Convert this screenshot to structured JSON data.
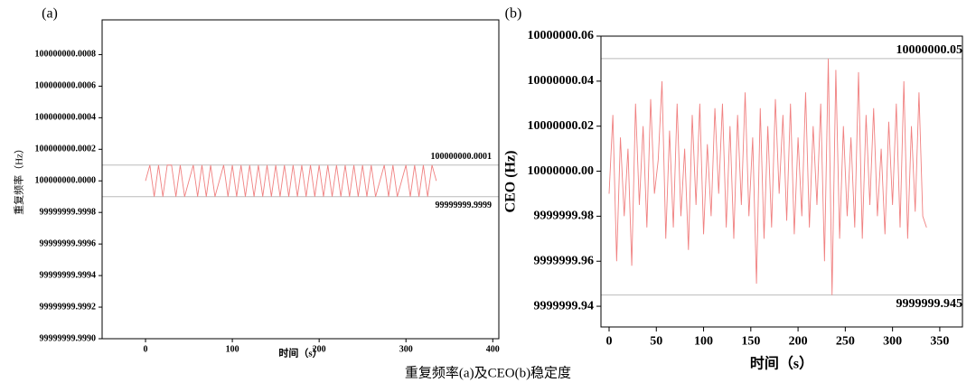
{
  "chart_data": [
    {
      "type": "line",
      "panel_label": "(a)",
      "x_label": "时间（s）",
      "y_label": "重复频率（Hz）",
      "xlim": [
        -50,
        407
      ],
      "xticks": [
        0,
        100,
        200,
        300,
        400
      ],
      "ylim": [
        99999999.999,
        100000000.00102
      ],
      "yticks": [
        {
          "value": 99999999.999,
          "label": "99999999.9990"
        },
        {
          "value": 99999999.9992,
          "label": "99999999.9992"
        },
        {
          "value": 99999999.9994,
          "label": "99999999.9994"
        },
        {
          "value": 99999999.9996,
          "label": "99999999.9996"
        },
        {
          "value": 99999999.9998,
          "label": "99999999.9998"
        },
        {
          "value": 100000000,
          "label": "100000000.0000"
        },
        {
          "value": 100000000.0002,
          "label": "100000000.0002"
        },
        {
          "value": 100000000.0004,
          "label": "100000000.0004"
        },
        {
          "value": 100000000.0006,
          "label": "100000000.0006"
        },
        {
          "value": 100000000.0008,
          "label": "100000000.0008"
        }
      ],
      "hlines": [
        {
          "value": 100000000.0001,
          "label": "100000000.0001"
        },
        {
          "value": 99999999.9999,
          "label": "99999999.9999"
        }
      ],
      "series": [
        {
          "color": "#f08080",
          "x": [
            0,
            5,
            10,
            15,
            20,
            25,
            30,
            35,
            40,
            45,
            50,
            55,
            60,
            65,
            70,
            75,
            80,
            85,
            90,
            95,
            100,
            105,
            110,
            115,
            120,
            125,
            130,
            135,
            140,
            145,
            150,
            155,
            160,
            165,
            170,
            175,
            180,
            185,
            190,
            195,
            200,
            205,
            210,
            215,
            220,
            225,
            230,
            235,
            240,
            245,
            250,
            255,
            260,
            265,
            270,
            275,
            280,
            285,
            290,
            295,
            300,
            305,
            310,
            315,
            320,
            325,
            330,
            335
          ],
          "values": [
            100000000,
            100000000.0001,
            99999999.9999,
            100000000.0001,
            99999999.9999,
            100000000.0001,
            100000000.0001,
            99999999.9999,
            100000000.0001,
            99999999.9999,
            100000000,
            100000000.0001,
            99999999.9999,
            100000000.0001,
            99999999.9999,
            100000000.0001,
            99999999.9999,
            100000000,
            100000000.0001,
            99999999.9999,
            100000000.0001,
            99999999.9999,
            100000000.0001,
            99999999.9999,
            100000000.0001,
            99999999.9999,
            100000000.0001,
            99999999.9999,
            100000000.0001,
            99999999.9999,
            100000000.0001,
            99999999.9999,
            100000000.0001,
            99999999.9999,
            100000000.0001,
            99999999.9999,
            100000000.0001,
            99999999.9999,
            100000000.0001,
            99999999.9999,
            100000000.0001,
            99999999.9999,
            100000000.0001,
            99999999.9999,
            100000000.0001,
            99999999.9999,
            100000000.0001,
            99999999.9999,
            100000000.0001,
            99999999.9999,
            100000000.0001,
            99999999.9999,
            100000000.0001,
            99999999.9999,
            100000000,
            100000000.0001,
            99999999.9999,
            100000000.0001,
            99999999.9999,
            100000000,
            100000000.0001,
            99999999.9999,
            100000000.0001,
            99999999.9999,
            100000000.0001,
            99999999.9999,
            100000000.0001,
            100000000
          ]
        }
      ]
    },
    {
      "type": "line",
      "panel_label": "(b)",
      "x_label": "时间（s）",
      "y_label": "CEO (Hz)",
      "xlim": [
        -8.6,
        374
      ],
      "xticks": [
        0,
        50,
        100,
        150,
        200,
        250,
        300,
        350
      ],
      "ylim": [
        9999999.9308,
        10000000.06
      ],
      "yticks": [
        {
          "value": 9999999.94,
          "label": "9999999.94"
        },
        {
          "value": 9999999.96,
          "label": "9999999.96"
        },
        {
          "value": 9999999.98,
          "label": "9999999.98"
        },
        {
          "value": 10000000,
          "label": "10000000.00"
        },
        {
          "value": 10000000.02,
          "label": "10000000.02"
        },
        {
          "value": 10000000.04,
          "label": "10000000.04"
        },
        {
          "value": 10000000.06,
          "label": "10000000.06"
        }
      ],
      "hlines": [
        {
          "value": 10000000.05,
          "label": "10000000.05"
        },
        {
          "value": 9999999.945,
          "label": "9999999.945"
        }
      ],
      "series": [
        {
          "color": "#f08080",
          "x": [
            0,
            4,
            8,
            12,
            16,
            20,
            24,
            28,
            32,
            36,
            40,
            44,
            48,
            52,
            56,
            60,
            64,
            68,
            72,
            76,
            80,
            84,
            88,
            92,
            96,
            100,
            104,
            108,
            112,
            116,
            120,
            124,
            128,
            132,
            136,
            140,
            144,
            148,
            152,
            156,
            160,
            164,
            168,
            172,
            176,
            180,
            184,
            188,
            192,
            196,
            200,
            204,
            208,
            212,
            216,
            220,
            224,
            228,
            232,
            236,
            240,
            244,
            248,
            252,
            256,
            260,
            264,
            268,
            272,
            276,
            280,
            284,
            288,
            292,
            296,
            300,
            304,
            308,
            312,
            316,
            320,
            324,
            328,
            332,
            336
          ],
          "values": [
            9999999.99,
            10000000.025,
            9999999.96,
            10000000.015,
            9999999.98,
            10000000.01,
            9999999.958,
            10000000.03,
            9999999.985,
            10000000.02,
            9999999.975,
            10000000.032,
            9999999.99,
            10000000.005,
            10000000.04,
            9999999.97,
            10000000.018,
            9999999.975,
            10000000.03,
            9999999.98,
            10000000.01,
            9999999.965,
            10000000.025,
            9999999.985,
            10000000.03,
            9999999.972,
            10000000.012,
            9999999.98,
            10000000.028,
            9999999.99,
            10000000.03,
            9999999.975,
            10000000.02,
            9999999.97,
            10000000.025,
            9999999.985,
            10000000.035,
            9999999.98,
            10000000.015,
            9999999.95,
            10000000.028,
            9999999.97,
            10000000.02,
            9999999.975,
            10000000.032,
            9999999.99,
            10000000.025,
            9999999.978,
            10000000.03,
            9999999.972,
            10000000.015,
            9999999.98,
            10000000.035,
            9999999.975,
            10000000.02,
            9999999.985,
            10000000.03,
            9999999.96,
            10000000.05,
            9999999.945,
            10000000.045,
            9999999.97,
            10000000.02,
            9999999.98,
            10000000.015,
            9999999.975,
            10000000.044,
            9999999.97,
            10000000.025,
            9999999.985,
            10000000.028,
            9999999.98,
            10000000.01,
            9999999.972,
            10000000.022,
            9999999.985,
            10000000.03,
            9999999.975,
            10000000.04,
            9999999.97,
            10000000.02,
            9999999.982,
            10000000.035,
            9999999.98,
            9999999.975
          ]
        }
      ]
    }
  ],
  "figure_caption": "重复频率(a)及CEO(b)稳定度"
}
